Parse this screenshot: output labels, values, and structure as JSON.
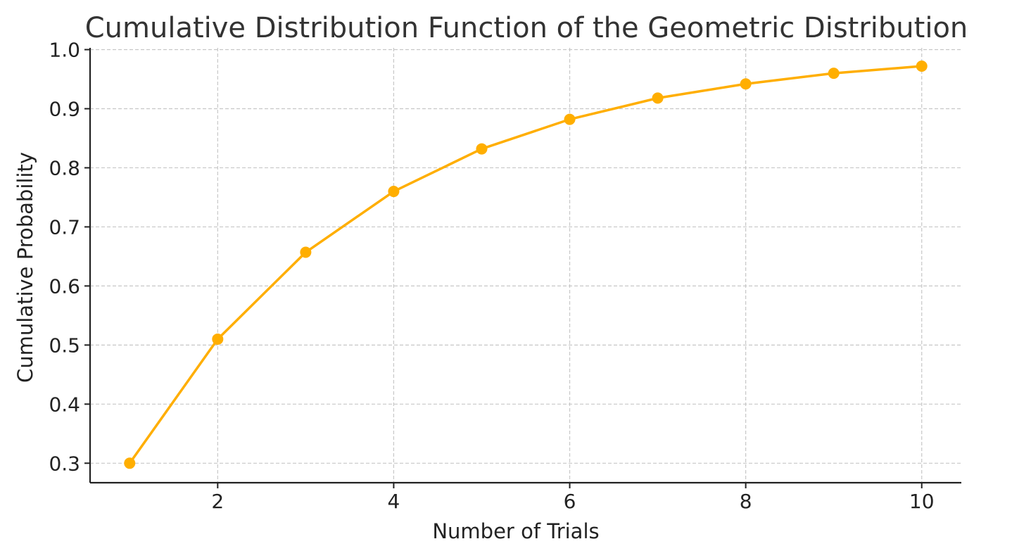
{
  "chart_data": {
    "type": "line",
    "title": "Cumulative Distribution Function of the Geometric Distribution",
    "xlabel": "Number of Trials",
    "ylabel": "Cumulative Probability",
    "x": [
      1,
      2,
      3,
      4,
      5,
      6,
      7,
      8,
      9,
      10
    ],
    "series": [
      {
        "values": [
          0.3,
          0.51,
          0.657,
          0.76,
          0.832,
          0.882,
          0.918,
          0.942,
          0.96,
          0.972
        ]
      }
    ],
    "xlim": [
      0.55,
      10.45
    ],
    "ylim": [
      0.267,
      1.003
    ],
    "xticks": [
      2,
      4,
      6,
      8,
      10
    ],
    "xtick_labels": [
      "2",
      "4",
      "6",
      "8",
      "10"
    ],
    "yticks": [
      0.3,
      0.4,
      0.5,
      0.6,
      0.7,
      0.8,
      0.9,
      1.0
    ],
    "ytick_labels": [
      "0.3",
      "0.4",
      "0.5",
      "0.6",
      "0.7",
      "0.8",
      "0.9",
      "1.0"
    ],
    "grid": true,
    "legend": "none",
    "colors": {
      "series": "#FFAE00"
    }
  }
}
